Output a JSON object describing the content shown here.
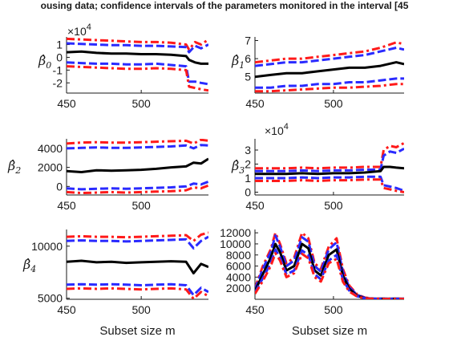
{
  "title": "ousing data; confidence intervals of the parameters monitored in the interval [45",
  "colors": {
    "estimate": "#000000",
    "band_inner": "#2a2aff",
    "band_outer": "#ff1a1a",
    "axis": "#1a1a1a"
  },
  "chart_data": [
    {
      "type": "line",
      "ylabel_base": "β̂",
      "ylabel_sub": "0",
      "multiplier_base": "×10",
      "multiplier_exp": "4",
      "xlabel": "",
      "xlim": [
        450,
        545
      ],
      "ylim": [
        -2.8,
        1.6
      ],
      "xticks": [
        450,
        500
      ],
      "xtick_labels": [
        "450",
        "500"
      ],
      "yticks": [
        1,
        0,
        -1,
        -2
      ],
      "ytick_labels": [
        "1",
        "0",
        "-1",
        "-2"
      ],
      "x": [
        450,
        460,
        470,
        480,
        490,
        500,
        510,
        520,
        530,
        532,
        536,
        540,
        545
      ],
      "series": [
        {
          "role": "outer_upper",
          "values": [
            1.45,
            1.4,
            1.35,
            1.3,
            1.25,
            1.2,
            1.2,
            1.15,
            1.0,
            0.6,
            1.2,
            1.0,
            1.4
          ]
        },
        {
          "role": "inner_upper",
          "values": [
            1.1,
            1.05,
            1.0,
            0.95,
            0.95,
            0.9,
            0.9,
            0.85,
            0.8,
            0.4,
            0.9,
            0.7,
            1.0
          ]
        },
        {
          "role": "estimate",
          "values": [
            0.4,
            0.45,
            0.35,
            0.3,
            0.3,
            0.25,
            0.25,
            0.2,
            0.1,
            -0.2,
            -0.4,
            -0.5,
            -0.5
          ]
        },
        {
          "role": "inner_lower",
          "values": [
            -0.4,
            -0.45,
            -0.5,
            -0.5,
            -0.55,
            -0.55,
            -0.5,
            -0.6,
            -0.7,
            -1.9,
            -1.9,
            -2.0,
            -2.1
          ]
        },
        {
          "role": "outer_lower",
          "values": [
            -0.7,
            -0.75,
            -0.8,
            -0.85,
            -0.9,
            -0.9,
            -0.85,
            -0.9,
            -1.0,
            -2.3,
            -2.4,
            -2.5,
            -2.6
          ]
        }
      ]
    },
    {
      "type": "line",
      "ylabel_base": "β̂",
      "ylabel_sub": "1",
      "multiplier_base": "",
      "multiplier_exp": "",
      "xlabel": "",
      "xlim": [
        450,
        545
      ],
      "ylim": [
        4.1,
        7.2
      ],
      "xticks": [
        450,
        500
      ],
      "xtick_labels": [
        "450",
        "500"
      ],
      "yticks": [
        7,
        6,
        5
      ],
      "ytick_labels": [
        "7",
        "6",
        "5"
      ],
      "x": [
        450,
        460,
        470,
        480,
        490,
        500,
        510,
        520,
        530,
        540,
        545
      ],
      "series": [
        {
          "role": "outer_upper",
          "values": [
            5.8,
            5.9,
            6.0,
            6.0,
            6.1,
            6.2,
            6.3,
            6.4,
            6.6,
            6.9,
            6.8
          ]
        },
        {
          "role": "inner_upper",
          "values": [
            5.6,
            5.7,
            5.8,
            5.8,
            5.9,
            6.0,
            6.1,
            6.2,
            6.4,
            6.6,
            6.5
          ]
        },
        {
          "role": "estimate",
          "values": [
            5.0,
            5.1,
            5.2,
            5.2,
            5.3,
            5.4,
            5.5,
            5.5,
            5.6,
            5.8,
            5.7
          ]
        },
        {
          "role": "inner_lower",
          "values": [
            4.4,
            4.4,
            4.5,
            4.5,
            4.6,
            4.6,
            4.7,
            4.7,
            4.8,
            4.9,
            4.9
          ]
        },
        {
          "role": "outer_lower",
          "values": [
            4.2,
            4.2,
            4.25,
            4.3,
            4.35,
            4.4,
            4.4,
            4.45,
            4.5,
            4.6,
            4.6
          ]
        }
      ]
    },
    {
      "type": "line",
      "ylabel_base": "β̂",
      "ylabel_sub": "2",
      "multiplier_base": "",
      "multiplier_exp": "",
      "xlabel": "",
      "xlim": [
        450,
        545
      ],
      "ylim": [
        -900,
        5000
      ],
      "xticks": [
        450,
        500
      ],
      "xtick_labels": [
        "450",
        "500"
      ],
      "yticks": [
        4000,
        2000,
        0
      ],
      "ytick_labels": [
        "4000",
        "2000",
        "0"
      ],
      "x": [
        450,
        460,
        470,
        480,
        490,
        500,
        510,
        520,
        530,
        535,
        540,
        545
      ],
      "series": [
        {
          "role": "outer_upper",
          "values": [
            4500,
            4600,
            4650,
            4600,
            4600,
            4650,
            4700,
            4750,
            4800,
            4500,
            4900,
            4800
          ]
        },
        {
          "role": "inner_upper",
          "values": [
            4000,
            4050,
            4100,
            4050,
            4050,
            4100,
            4150,
            4200,
            4300,
            4000,
            4350,
            4300
          ]
        },
        {
          "role": "estimate",
          "values": [
            1600,
            1500,
            1700,
            1650,
            1700,
            1750,
            1850,
            2000,
            2100,
            2500,
            2400,
            2900
          ]
        },
        {
          "role": "inner_lower",
          "values": [
            -200,
            -300,
            -250,
            -200,
            -250,
            -200,
            -150,
            -100,
            0,
            300,
            200,
            500
          ]
        },
        {
          "role": "outer_lower",
          "values": [
            -600,
            -700,
            -650,
            -600,
            -650,
            -600,
            -550,
            -500,
            -400,
            -100,
            -200,
            100
          ]
        }
      ]
    },
    {
      "type": "line",
      "ylabel_base": "β̂",
      "ylabel_sub": "3",
      "multiplier_base": "×10",
      "multiplier_exp": "4",
      "xlabel": "",
      "xlim": [
        450,
        545
      ],
      "ylim": [
        -0.2,
        3.8
      ],
      "xticks": [
        450,
        500
      ],
      "xtick_labels": [
        "450",
        "500"
      ],
      "yticks": [
        3,
        2,
        1,
        0
      ],
      "ytick_labels": [
        "3",
        "2",
        "1",
        "0"
      ],
      "x": [
        450,
        460,
        470,
        480,
        490,
        500,
        510,
        520,
        530,
        532,
        536,
        540,
        545
      ],
      "series": [
        {
          "role": "outer_upper",
          "values": [
            1.7,
            1.7,
            1.7,
            1.75,
            1.7,
            1.75,
            1.75,
            1.8,
            1.8,
            3.0,
            3.3,
            3.2,
            3.5
          ]
        },
        {
          "role": "inner_upper",
          "values": [
            1.5,
            1.5,
            1.5,
            1.55,
            1.5,
            1.55,
            1.55,
            1.6,
            1.6,
            2.6,
            2.9,
            2.8,
            3.1
          ]
        },
        {
          "role": "estimate",
          "values": [
            1.3,
            1.3,
            1.3,
            1.35,
            1.3,
            1.35,
            1.35,
            1.4,
            1.5,
            1.8,
            1.8,
            1.75,
            1.7
          ]
        },
        {
          "role": "inner_lower",
          "values": [
            1.0,
            1.0,
            1.0,
            1.05,
            1.0,
            1.05,
            1.05,
            1.1,
            1.1,
            0.5,
            0.4,
            0.3,
            0.1
          ]
        },
        {
          "role": "outer_lower",
          "values": [
            0.8,
            0.8,
            0.8,
            0.85,
            0.8,
            0.85,
            0.85,
            0.9,
            0.9,
            0.3,
            0.2,
            0.1,
            0.0
          ]
        }
      ]
    },
    {
      "type": "line",
      "ylabel_base": "β̂",
      "ylabel_sub": "4",
      "multiplier_base": "",
      "multiplier_exp": "",
      "xlabel": "Subset size m",
      "xlim": [
        450,
        545
      ],
      "ylim": [
        4900,
        11600
      ],
      "xticks": [
        450,
        500
      ],
      "xtick_labels": [
        "450",
        "500"
      ],
      "yticks": [
        10000,
        5000
      ],
      "ytick_labels": [
        "10000",
        "5000"
      ],
      "x": [
        450,
        460,
        470,
        480,
        490,
        500,
        510,
        520,
        530,
        535,
        540,
        545
      ],
      "series": [
        {
          "role": "outer_upper",
          "values": [
            10900,
            10950,
            10900,
            10900,
            10850,
            10900,
            10950,
            11000,
            11050,
            10500,
            11100,
            11300
          ]
        },
        {
          "role": "inner_upper",
          "values": [
            10500,
            10550,
            10500,
            10500,
            10450,
            10500,
            10550,
            10600,
            10650,
            9800,
            10500,
            10900
          ]
        },
        {
          "role": "estimate",
          "values": [
            8500,
            8600,
            8450,
            8500,
            8400,
            8450,
            8500,
            8550,
            8500,
            7400,
            8300,
            8000
          ]
        },
        {
          "role": "inner_lower",
          "values": [
            6300,
            6350,
            6300,
            6350,
            6300,
            6250,
            6300,
            6350,
            6250,
            5300,
            6000,
            5600
          ]
        },
        {
          "role": "outer_lower",
          "values": [
            5900,
            5950,
            5900,
            5950,
            5900,
            5850,
            5900,
            5950,
            5850,
            4950,
            5600,
            5200
          ]
        }
      ]
    },
    {
      "type": "line",
      "ylabel_base": "",
      "ylabel_sub": "",
      "multiplier_base": "",
      "multiplier_exp": "",
      "xlabel": "Subset size m",
      "xlim": [
        450,
        545
      ],
      "ylim": [
        0,
        12600
      ],
      "xticks": [
        450,
        500
      ],
      "xtick_labels": [
        "450",
        "500"
      ],
      "yticks": [
        12000,
        10000,
        8000,
        6000,
        4000,
        2000
      ],
      "ytick_labels": [
        "12000",
        "10000",
        "8000",
        "6000",
        "4000",
        "2000"
      ],
      "x": [
        450,
        455,
        460,
        463,
        466,
        470,
        475,
        480,
        484,
        488,
        492,
        497,
        502,
        506,
        510,
        515,
        520,
        525,
        530,
        545
      ],
      "series": [
        {
          "role": "outer_upper",
          "values": [
            2000,
            6000,
            9000,
            12000,
            10000,
            6500,
            7500,
            12000,
            11000,
            6500,
            5500,
            9500,
            11000,
            5500,
            2500,
            900,
            300,
            150,
            100,
            100
          ]
        },
        {
          "role": "inner_upper",
          "values": [
            1800,
            5500,
            8500,
            11500,
            9500,
            6000,
            7000,
            11200,
            10400,
            6000,
            5000,
            9000,
            10300,
            5000,
            2200,
            800,
            250,
            120,
            100,
            100
          ]
        },
        {
          "role": "estimate",
          "values": [
            1500,
            4500,
            7500,
            10000,
            8500,
            5200,
            6000,
            10000,
            9200,
            5200,
            4300,
            8000,
            9000,
            4300,
            1900,
            650,
            200,
            100,
            80,
            80
          ]
        },
        {
          "role": "inner_lower",
          "values": [
            1200,
            3800,
            6500,
            9000,
            7500,
            4500,
            5200,
            8800,
            8000,
            4500,
            3600,
            7000,
            8000,
            3600,
            1600,
            550,
            180,
            90,
            70,
            70
          ]
        },
        {
          "role": "outer_lower",
          "values": [
            1000,
            3300,
            6000,
            8300,
            7000,
            4000,
            4700,
            8200,
            7400,
            4000,
            3200,
            6500,
            7300,
            3200,
            1400,
            500,
            150,
            80,
            60,
            60
          ]
        }
      ]
    }
  ]
}
